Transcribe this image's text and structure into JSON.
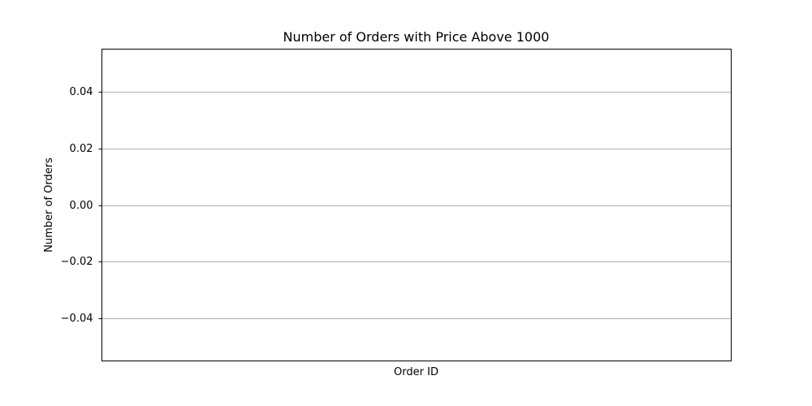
{
  "chart_data": {
    "type": "bar",
    "title": "Number of Orders with Price Above 1000",
    "xlabel": "Order ID",
    "ylabel": "Number of Orders",
    "categories": [],
    "values": [],
    "ylim": [
      -0.055,
      0.055
    ],
    "yticks": [
      0.04,
      0.02,
      0.0,
      -0.02,
      -0.04
    ],
    "ytick_labels": [
      "0.04",
      "0.02",
      "0.00",
      "−0.02",
      "−0.04"
    ],
    "grid": "y",
    "colors": {
      "grid": "#b0b0b0",
      "axes": "#000000",
      "text": "#000000"
    }
  }
}
